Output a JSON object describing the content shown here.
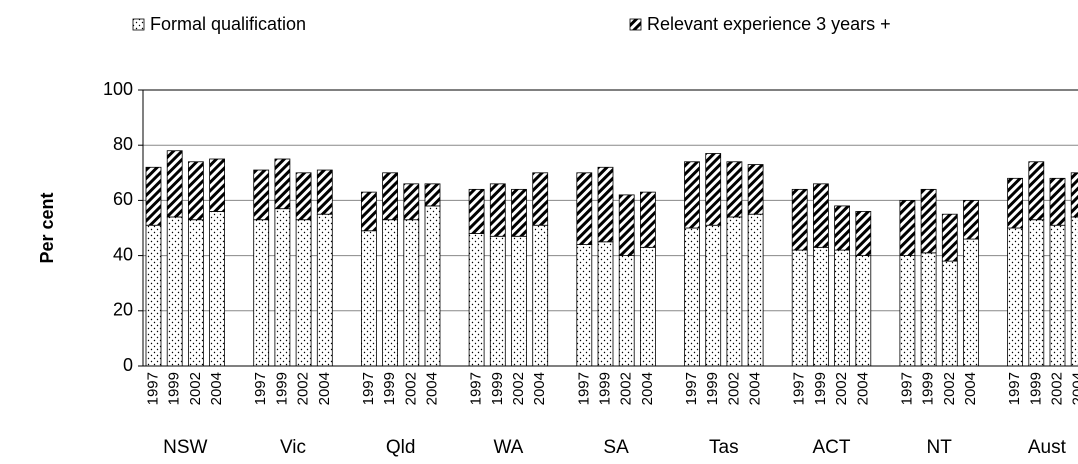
{
  "chart_data": {
    "type": "stacked_bar",
    "legend": "top",
    "y_label": "Per cent",
    "groups": [
      "NSW",
      "Vic",
      "Qld",
      "WA",
      "SA",
      "Tas",
      "ACT",
      "NT",
      "Aust"
    ],
    "years": [
      "1997",
      "1999",
      "2002",
      "2004"
    ],
    "ylim": [
      0,
      100
    ],
    "yticks": [
      0,
      20,
      40,
      60,
      80,
      100
    ],
    "grid": true,
    "series": [
      {
        "name": "Formal qualification",
        "color": "#000000",
        "pattern": "dots",
        "values": [
          51,
          54,
          53,
          56,
          53,
          57,
          53,
          55,
          49,
          53,
          53,
          58,
          48,
          47,
          47,
          51,
          44,
          45,
          40,
          43,
          50,
          51,
          54,
          55,
          42,
          43,
          42,
          40,
          40,
          41,
          38,
          46,
          50,
          53,
          51,
          54
        ]
      },
      {
        "name": "Relevant experience 3 years +",
        "color": "#000000",
        "pattern": "hatch",
        "values": [
          21,
          24,
          21,
          19,
          18,
          18,
          17,
          16,
          14,
          17,
          13,
          8,
          16,
          19,
          17,
          19,
          26,
          27,
          22,
          20,
          24,
          26,
          20,
          18,
          22,
          23,
          16,
          16,
          20,
          23,
          17,
          14,
          18,
          21,
          17,
          16
        ]
      }
    ]
  }
}
